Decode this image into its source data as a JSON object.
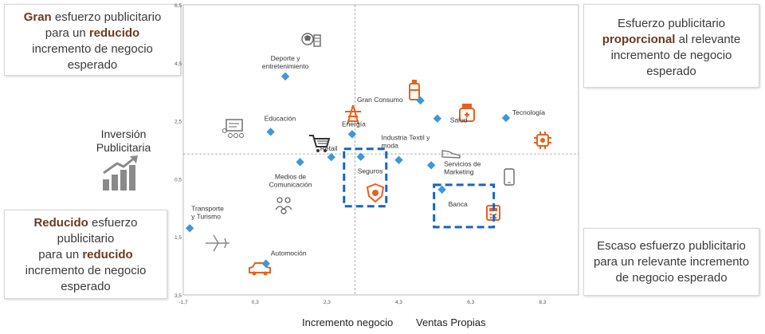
{
  "quadrants": {
    "top_left": {
      "bold1": "Gran",
      "t1": " esfuerzo publicitario",
      "t2": "para un ",
      "bold2": "reducido",
      "t3": "incremento de negocio",
      "t4": "esperado"
    },
    "top_right": {
      "t1": "Esfuerzo publicitario",
      "bold1": "proporcional",
      "t2": " al relevante",
      "t3": "incremento de negocio",
      "t4": "esperado"
    },
    "bottom_left": {
      "bold1": "Reducido",
      "t1": " esfuerzo",
      "t2": "publicitario",
      "t3": "para un ",
      "bold2": "reducido",
      "t4": "incremento de negocio",
      "t5": "esperado"
    },
    "bottom_right": {
      "t1": "Escaso esfuerzo publicitario",
      "t2": "para un  relevante incremento",
      "t3": "de negocio esperado"
    }
  },
  "y_axis_label": [
    "Inversión",
    "Publicitaria"
  ],
  "x_axis_label_left": "Incremento negocio",
  "x_axis_label_right": "Ventas Propias",
  "colors": {
    "marker": "#3d97d9",
    "icon_orange": "#e8601c",
    "icon_gray": "#777777",
    "highlight": "#1565c0",
    "chart_bg": "#ffffff"
  },
  "chart_data": {
    "type": "scatter",
    "xlim": [
      -1.7,
      9.3
    ],
    "ylim": [
      -3.5,
      6.5
    ],
    "x_ticks": [
      "-1,7",
      "0,3",
      "2,3",
      "4,3",
      "6,3",
      "8,3"
    ],
    "x_tick_values": [
      -1.7,
      0.3,
      2.3,
      4.3,
      6.3,
      8.3
    ],
    "y_ticks": [
      "6,5",
      "4,5",
      "2,5",
      "0,5",
      "-1,5",
      "-3,5"
    ],
    "y_tick_values": [
      6.5,
      4.5,
      2.5,
      0.5,
      -1.5,
      -3.5
    ],
    "grid": false,
    "reference_lines": {
      "x": 3.08,
      "y": 1.36
    },
    "points": [
      {
        "label": "Deporte y\nentretenimiento",
        "x": 1.14,
        "y": 4.03
      },
      {
        "label": "Gran Consumo",
        "x": 4.9,
        "y": 3.2
      },
      {
        "label": "Salud",
        "x": 5.37,
        "y": 2.58
      },
      {
        "label": "Tecnología",
        "x": 7.28,
        "y": 2.6
      },
      {
        "label": "Educación",
        "x": 0.73,
        "y": 2.12
      },
      {
        "label": "Energía",
        "x": 3.0,
        "y": 2.04
      },
      {
        "label": "Retail",
        "x": 2.42,
        "y": 1.25
      },
      {
        "label": "Seguros",
        "x": 3.24,
        "y": 1.26
      },
      {
        "label": "Industria Textil y\nmoda",
        "x": 4.3,
        "y": 1.15
      },
      {
        "label": "Medios de\nComunicación",
        "x": 1.55,
        "y": 1.08
      },
      {
        "label": "Servicios de\nMarketing",
        "x": 5.2,
        "y": 0.97
      },
      {
        "label": "Banca",
        "x": 5.5,
        "y": 0.13
      },
      {
        "label": "Transporte\ny Turismo",
        "x": -1.52,
        "y": -1.2
      },
      {
        "label": "Automoción",
        "x": 0.6,
        "y": -2.42
      }
    ],
    "highlighted": [
      "Seguros",
      "Banca"
    ]
  }
}
